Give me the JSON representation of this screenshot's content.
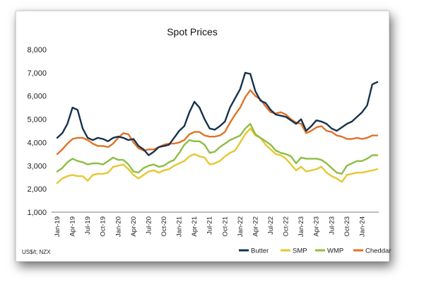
{
  "chart_data": {
    "type": "line",
    "title": "Spot Prices",
    "xlabel": "",
    "ylabel": "",
    "ylim": [
      1000,
      8000
    ],
    "yticks": [
      "1,000",
      "2,000",
      "3,000",
      "4,000",
      "5,000",
      "6,000",
      "7,000",
      "8,000"
    ],
    "xticks": [
      "Jan-19",
      "Apr-19",
      "Jul-19",
      "Oct-19",
      "Jan-20",
      "Apr-20",
      "Jul-20",
      "Oct-20",
      "Jan-21",
      "Apr-21",
      "Jul-21",
      "Oct-21",
      "Jan-22",
      "Apr-22",
      "Jul-22",
      "Oct-22",
      "Jan-23",
      "Apr-23",
      "Jul-23",
      "Oct-23",
      "Jan-24"
    ],
    "grid": false,
    "legend_position": "bottom-right",
    "source_note": "US$/t; NZX",
    "x": [
      "Jan-19",
      "Feb-19",
      "Mar-19",
      "Apr-19",
      "May-19",
      "Jun-19",
      "Jul-19",
      "Aug-19",
      "Sep-19",
      "Oct-19",
      "Nov-19",
      "Dec-19",
      "Jan-20",
      "Feb-20",
      "Mar-20",
      "Apr-20",
      "May-20",
      "Jun-20",
      "Jul-20",
      "Aug-20",
      "Sep-20",
      "Oct-20",
      "Nov-20",
      "Dec-20",
      "Jan-21",
      "Feb-21",
      "Mar-21",
      "Apr-21",
      "May-21",
      "Jun-21",
      "Jul-21",
      "Aug-21",
      "Sep-21",
      "Oct-21",
      "Nov-21",
      "Dec-21",
      "Jan-22",
      "Feb-22",
      "Mar-22",
      "Apr-22",
      "May-22",
      "Jun-22",
      "Jul-22",
      "Aug-22",
      "Sep-22",
      "Oct-22",
      "Nov-22",
      "Dec-22",
      "Jan-23",
      "Feb-23",
      "Mar-23",
      "Apr-23",
      "May-23",
      "Jun-23",
      "Jul-23",
      "Aug-23",
      "Sep-23",
      "Oct-23",
      "Nov-23",
      "Dec-23",
      "Jan-24",
      "Feb-24",
      "Mar-24",
      "Apr-24"
    ],
    "series": [
      {
        "name": "Butter",
        "color": "#17324d",
        "values": [
          4200,
          4400,
          4800,
          5500,
          5400,
          4600,
          4200,
          4100,
          4200,
          4150,
          4050,
          4200,
          4250,
          4200,
          4100,
          4150,
          3850,
          3700,
          3450,
          3600,
          3800,
          3850,
          3900,
          4200,
          4500,
          4700,
          5300,
          5750,
          5500,
          5000,
          4600,
          4550,
          4700,
          4900,
          5500,
          5900,
          6300,
          7000,
          6950,
          6200,
          5800,
          5700,
          5400,
          5200,
          5150,
          5100,
          4950,
          4800,
          5000,
          4500,
          4700,
          4950,
          4900,
          4800,
          4600,
          4500,
          4650,
          4800,
          4900,
          5100,
          5300,
          5600,
          6500,
          6600
        ]
      },
      {
        "name": "SMP",
        "color": "#e6c733",
        "values": [
          2250,
          2450,
          2550,
          2600,
          2550,
          2550,
          2350,
          2600,
          2650,
          2650,
          2700,
          2950,
          3000,
          3050,
          2850,
          2600,
          2450,
          2600,
          2750,
          2800,
          2700,
          2800,
          2850,
          3000,
          3100,
          3200,
          3400,
          3500,
          3400,
          3350,
          3050,
          3100,
          3200,
          3400,
          3550,
          3650,
          4000,
          4350,
          4600,
          4300,
          4200,
          3900,
          3700,
          3500,
          3450,
          3300,
          3050,
          2800,
          2950,
          2750,
          2800,
          2850,
          2950,
          2700,
          2550,
          2450,
          2300,
          2600,
          2650,
          2700,
          2700,
          2750,
          2800,
          2850
        ]
      },
      {
        "name": "WMP",
        "color": "#8fbd45",
        "values": [
          2750,
          2900,
          3150,
          3300,
          3200,
          3150,
          3050,
          3100,
          3100,
          3050,
          3200,
          3350,
          3250,
          3250,
          3050,
          2750,
          2700,
          2900,
          3000,
          3050,
          2950,
          3000,
          3150,
          3250,
          3550,
          3900,
          4100,
          4050,
          4050,
          3900,
          3550,
          3600,
          3800,
          3950,
          4100,
          4200,
          4300,
          4600,
          4800,
          4350,
          4200,
          4050,
          3900,
          3650,
          3550,
          3500,
          3400,
          3100,
          3350,
          3300,
          3300,
          3300,
          3250,
          3100,
          2900,
          2700,
          2650,
          3000,
          3100,
          3200,
          3200,
          3300,
          3450,
          3450
        ]
      },
      {
        "name": "Cheddar",
        "color": "#e07327",
        "values": [
          3500,
          3700,
          3950,
          4150,
          4200,
          4200,
          4100,
          3950,
          3850,
          3850,
          3800,
          3950,
          4200,
          4400,
          4350,
          4000,
          3750,
          3650,
          3700,
          3700,
          3800,
          3900,
          3950,
          3950,
          4000,
          4100,
          4350,
          4450,
          4450,
          4300,
          4250,
          4250,
          4300,
          4450,
          4850,
          5200,
          5500,
          5950,
          6250,
          6000,
          5850,
          5550,
          5300,
          5250,
          5300,
          5200,
          5000,
          4850,
          4800,
          4400,
          4500,
          4650,
          4700,
          4500,
          4450,
          4300,
          4250,
          4150,
          4150,
          4200,
          4150,
          4200,
          4300,
          4300
        ]
      }
    ]
  }
}
